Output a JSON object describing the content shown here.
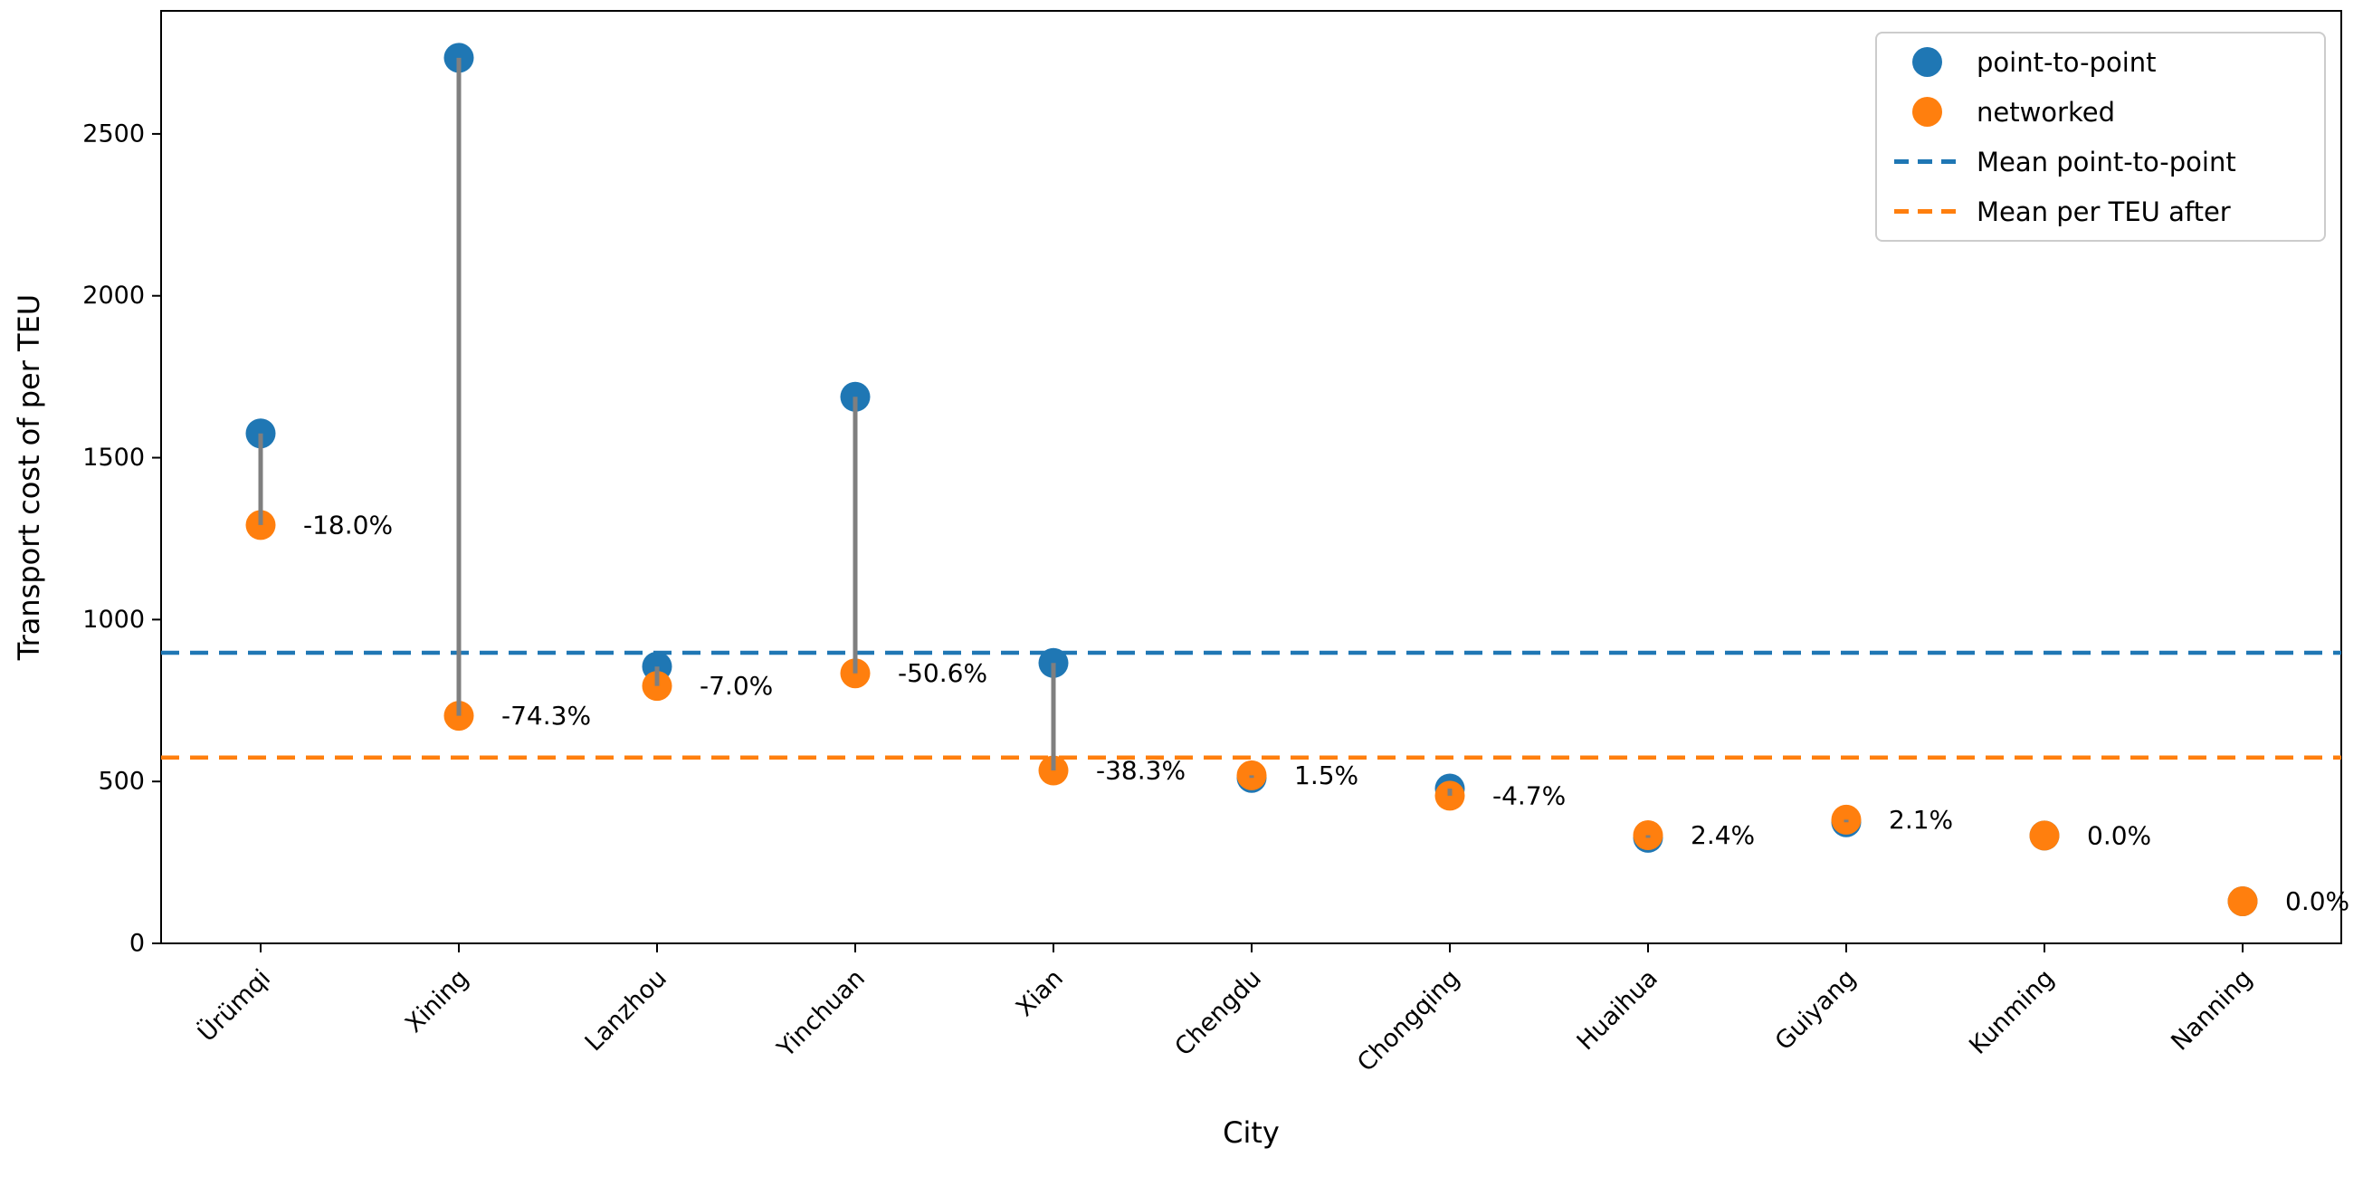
{
  "figure": {
    "background": "#ffffff"
  },
  "chart_data": {
    "type": "scatter",
    "title": "",
    "xlabel": "City",
    "ylabel": "Transport cost of per TEU",
    "categories": [
      "Ürümqi",
      "Xining",
      "Lanzhou",
      "Yinchuan",
      "Xian",
      "Chengdu",
      "Chongqing",
      "Huaihua",
      "Guiyang",
      "Kunming",
      "Nanning"
    ],
    "series": [
      {
        "name": "point-to-point",
        "color": "#1f77b4",
        "values": [
          1575,
          2735,
          855,
          1688,
          866,
          511,
          478,
          326,
          374,
          333,
          130
        ]
      },
      {
        "name": "networked",
        "color": "#ff7f0e",
        "values": [
          1292,
          703,
          795,
          834,
          534,
          519,
          456,
          334,
          382,
          333,
          130
        ]
      }
    ],
    "pct_change_labels": [
      "-18.0%",
      "-74.3%",
      "-7.0%",
      "-50.6%",
      "-38.3%",
      "1.5%",
      "-4.7%",
      "2.4%",
      "2.1%",
      "0.0%",
      "0.0%"
    ],
    "mean_lines": [
      {
        "name": "Mean point-to-point",
        "value": 897.4,
        "color": "#1f77b4",
        "style": "dashed"
      },
      {
        "name": "Mean per TEU after",
        "value": 573.8,
        "color": "#ff7f0e",
        "style": "dashed"
      }
    ],
    "connector_color": "#7f7f7f",
    "ylim": [
      0,
      2880
    ],
    "yticks": [
      0,
      500,
      1000,
      1500,
      2000,
      2500
    ],
    "xtick_rotation_deg": 45,
    "grid": false,
    "legend": {
      "position": "upper right",
      "entries": [
        {
          "label": "point-to-point",
          "marker": "dot",
          "color": "#1f77b4"
        },
        {
          "label": "networked",
          "marker": "dot",
          "color": "#ff7f0e"
        },
        {
          "label": "Mean point-to-point",
          "marker": "dashed-line",
          "color": "#1f77b4"
        },
        {
          "label": "Mean per TEU after",
          "marker": "dashed-line",
          "color": "#ff7f0e"
        }
      ]
    }
  }
}
